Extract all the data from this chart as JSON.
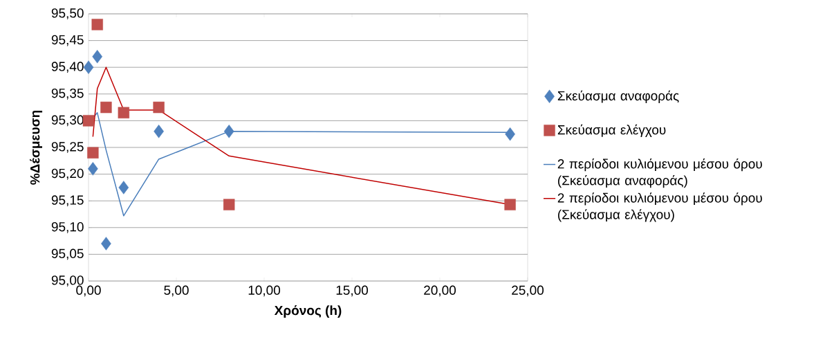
{
  "chart_data": {
    "type": "scatter",
    "xlabel": "Χρόνος (h)",
    "ylabel": "%Δέσμευση",
    "xlim": [
      0,
      25
    ],
    "ylim": [
      95.0,
      95.5
    ],
    "xticks": [
      {
        "value": 0,
        "label": "0,00"
      },
      {
        "value": 5,
        "label": "5,00"
      },
      {
        "value": 10,
        "label": "10,00"
      },
      {
        "value": 15,
        "label": "15,00"
      },
      {
        "value": 20,
        "label": "20,00"
      },
      {
        "value": 25,
        "label": "25,00"
      }
    ],
    "yticks": [
      {
        "value": 95.0,
        "label": "95,00"
      },
      {
        "value": 95.05,
        "label": "95,05"
      },
      {
        "value": 95.1,
        "label": "95,10"
      },
      {
        "value": 95.15,
        "label": "95,15"
      },
      {
        "value": 95.2,
        "label": "95,20"
      },
      {
        "value": 95.25,
        "label": "95,25"
      },
      {
        "value": 95.3,
        "label": "95,30"
      },
      {
        "value": 95.35,
        "label": "95,35"
      },
      {
        "value": 95.4,
        "label": "95,40"
      },
      {
        "value": 95.45,
        "label": "95,45"
      },
      {
        "value": 95.5,
        "label": "95,50"
      }
    ],
    "grid": "y",
    "legend": "right",
    "series": [
      {
        "name": "Σκεύασμα αναφοράς",
        "marker": "diamond",
        "color": "#4f81bd",
        "x": [
          0,
          0.25,
          0.5,
          1,
          2,
          4,
          8,
          24
        ],
        "values": [
          95.4,
          95.21,
          95.42,
          95.07,
          95.175,
          95.28,
          95.28,
          95.275
        ]
      },
      {
        "name": "Σκεύασμα ελέγχου",
        "marker": "square",
        "color": "#c0504d",
        "x": [
          0,
          0.25,
          0.5,
          1,
          2,
          4,
          8,
          24
        ],
        "values": [
          95.3,
          95.24,
          95.48,
          95.325,
          95.315,
          95.325,
          95.143,
          95.143
        ]
      },
      {
        "name": "2 περίοδοι κυλιόμενου μέσου όρου (Σκεύασμα αναφοράς)",
        "type": "line",
        "marker": "none",
        "color": "#4a7ebb",
        "x": [
          0.25,
          0.5,
          1,
          2,
          4,
          8,
          24
        ],
        "values": [
          95.305,
          95.315,
          95.245,
          95.122,
          95.228,
          95.28,
          95.278
        ]
      },
      {
        "name": "2 περίοδοι κυλιόμενου μέσου όρου (Σκεύασμα ελέγχου)",
        "type": "line",
        "marker": "none",
        "color": "#c00000",
        "x": [
          0.25,
          0.5,
          1,
          2,
          4,
          8,
          24
        ],
        "values": [
          95.27,
          95.36,
          95.4,
          95.32,
          95.32,
          95.234,
          95.143
        ]
      }
    ]
  }
}
